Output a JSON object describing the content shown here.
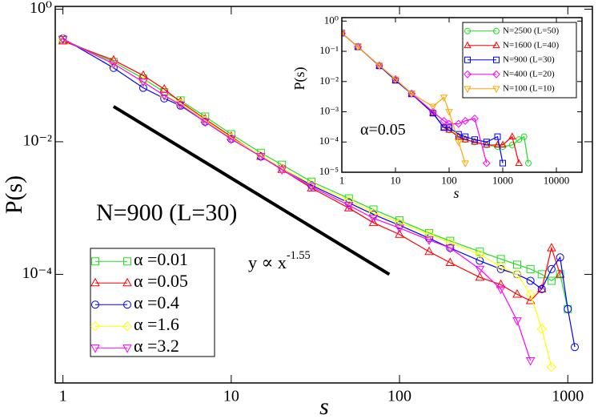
{
  "chart_data": [
    {
      "type": "line",
      "x_label": "s",
      "y_label": "P(s)",
      "log_x": true,
      "log_y": true,
      "xlim": [
        0.9,
        1400
      ],
      "ylim": [
        2.3e-06,
        1.1
      ],
      "xticks": [
        1,
        10,
        100,
        1000
      ],
      "yticks": [
        {
          "value": 1,
          "label": "10⁰"
        },
        {
          "value": 0.01,
          "label": "10⁻²"
        },
        {
          "value": 0.0001,
          "label": "10⁻⁴"
        }
      ],
      "x": [
        1,
        2,
        3,
        4,
        5,
        7,
        10,
        15,
        20,
        30,
        50,
        70,
        100,
        150,
        200,
        300,
        400,
        500,
        600,
        700,
        800,
        900,
        1000,
        1100
      ],
      "series": [
        {
          "name": "α =0.01",
          "color": "#22dd22",
          "marker": "square",
          "values": [
            0.35,
            0.16,
            0.09,
            0.056,
            0.042,
            0.024,
            0.013,
            0.0068,
            0.0045,
            0.0025,
            0.0014,
            0.00095,
            0.00065,
            0.00042,
            0.00032,
            0.00022,
            0.00017,
            0.00014,
            0.00012,
            0.0001,
            8e-05,
            0.0001,
            3e-05,
            null
          ]
        },
        {
          "name": "α =0.05",
          "color": "#ff0000",
          "marker": "triangle-up",
          "values": [
            0.33,
            0.17,
            0.1,
            0.062,
            0.04,
            0.022,
            0.012,
            0.006,
            0.0038,
            0.002,
            0.001,
            0.0006,
            0.0004,
            0.00022,
            0.00015,
            9e-05,
            7e-05,
            5e-05,
            4e-05,
            6e-05,
            0.00025,
            0.0001,
            null,
            null
          ]
        },
        {
          "name": "α =0.4",
          "color": "#0000ff",
          "marker": "circle",
          "values": [
            0.36,
            0.13,
            0.065,
            0.045,
            0.035,
            0.02,
            0.011,
            0.006,
            0.004,
            0.0022,
            0.0012,
            0.0008,
            0.00055,
            0.00035,
            0.00025,
            0.00016,
            0.00012,
            0.0001,
            8e-05,
            6e-05,
            0.00012,
            0.00018,
            3e-05,
            8e-06
          ]
        },
        {
          "name": "α =1.6",
          "color": "#ffff00",
          "marker": "diamond",
          "values": [
            0.35,
            0.15,
            0.08,
            0.05,
            0.038,
            0.021,
            0.0115,
            0.0062,
            0.004,
            0.0023,
            0.0013,
            0.00085,
            0.0006,
            0.0004,
            0.0003,
            0.0002,
            0.00013,
            0.0001,
            5e-05,
            1.5e-05,
            4e-06,
            null,
            null,
            null
          ]
        },
        {
          "name": "α =3.2",
          "color": "#ff00ff",
          "marker": "triangle-down",
          "values": [
            0.35,
            0.15,
            0.08,
            0.05,
            0.036,
            0.02,
            0.011,
            0.006,
            0.0038,
            0.0021,
            0.0011,
            0.0007,
            0.0005,
            0.00033,
            0.00025,
            0.00012,
            6e-05,
            2e-05,
            5e-06,
            null,
            null,
            null,
            null,
            null
          ]
        }
      ],
      "annotations": [
        {
          "text": "N=900 (L=30)"
        },
        {
          "text": "y ∝ x",
          "exponent": "-1.55"
        }
      ],
      "reference_line": {
        "x": [
          2,
          87
        ],
        "y": [
          0.034,
          0.0001
        ]
      }
    },
    {
      "type": "line",
      "x_label": "s",
      "y_label": "P(s)",
      "log_x": true,
      "log_y": true,
      "xlim": [
        1,
        30000
      ],
      "ylim": [
        1e-05,
        1.3
      ],
      "xticks": [
        1,
        10,
        100,
        1000,
        10000
      ],
      "yticks": [
        {
          "value": 1,
          "label": "10⁰"
        },
        {
          "value": 0.1,
          "label": "10⁻¹"
        },
        {
          "value": 0.01,
          "label": "10⁻²"
        },
        {
          "value": 0.001,
          "label": "10⁻³"
        },
        {
          "value": 0.0001,
          "label": "10⁻⁴"
        },
        {
          "value": 1e-05,
          "label": "10⁻⁵"
        }
      ],
      "x": [
        1,
        2,
        5,
        10,
        20,
        50,
        80,
        100,
        150,
        200,
        300,
        500,
        800,
        1000,
        1500,
        2000,
        2500,
        3000
      ],
      "series": [
        {
          "name": "N=2500 (L=50)",
          "color": "#22dd22",
          "marker": "circle",
          "values": [
            0.4,
            0.14,
            0.033,
            0.011,
            0.0039,
            0.00093,
            0.0003,
            0.00025,
            0.00015,
            0.00012,
            0.0001,
            8e-05,
            7e-05,
            7e-05,
            8e-05,
            0.00012,
            0.00015,
            2e-05
          ]
        },
        {
          "name": "N=1600 (L=40)",
          "color": "#ff0000",
          "marker": "triangle-up",
          "values": [
            0.4,
            0.14,
            0.033,
            0.011,
            0.0039,
            0.0009,
            0.0003,
            0.00025,
            0.00015,
            0.00012,
            0.0001,
            8e-05,
            8e-05,
            8e-05,
            0.00015,
            2e-05,
            null,
            null
          ]
        },
        {
          "name": "N=900 (L=30)",
          "color": "#0000ff",
          "marker": "square",
          "values": [
            0.4,
            0.14,
            0.033,
            0.011,
            0.0039,
            0.0009,
            0.0003,
            0.0003,
            0.00018,
            0.00015,
            0.00012,
            0.0001,
            0.00015,
            2e-05,
            null,
            null,
            null,
            null
          ]
        },
        {
          "name": "N=400 (L=20)",
          "color": "#ff00ff",
          "marker": "diamond",
          "values": [
            0.4,
            0.14,
            0.034,
            0.012,
            0.004,
            0.001,
            0.0005,
            0.0004,
            0.0004,
            0.0005,
            0.0006,
            2e-05,
            null,
            null,
            null,
            null,
            null,
            null
          ]
        },
        {
          "name": "N=100 (L=10)",
          "color": "#ffa500",
          "marker": "triangle-down",
          "values": [
            0.4,
            0.14,
            0.034,
            0.012,
            0.004,
            0.0015,
            0.003,
            0.001,
            0.0001,
            2e-05,
            null,
            null,
            null,
            null,
            null,
            null,
            null,
            null
          ]
        }
      ],
      "annotations": [
        {
          "text": "α=0.05"
        }
      ]
    }
  ]
}
